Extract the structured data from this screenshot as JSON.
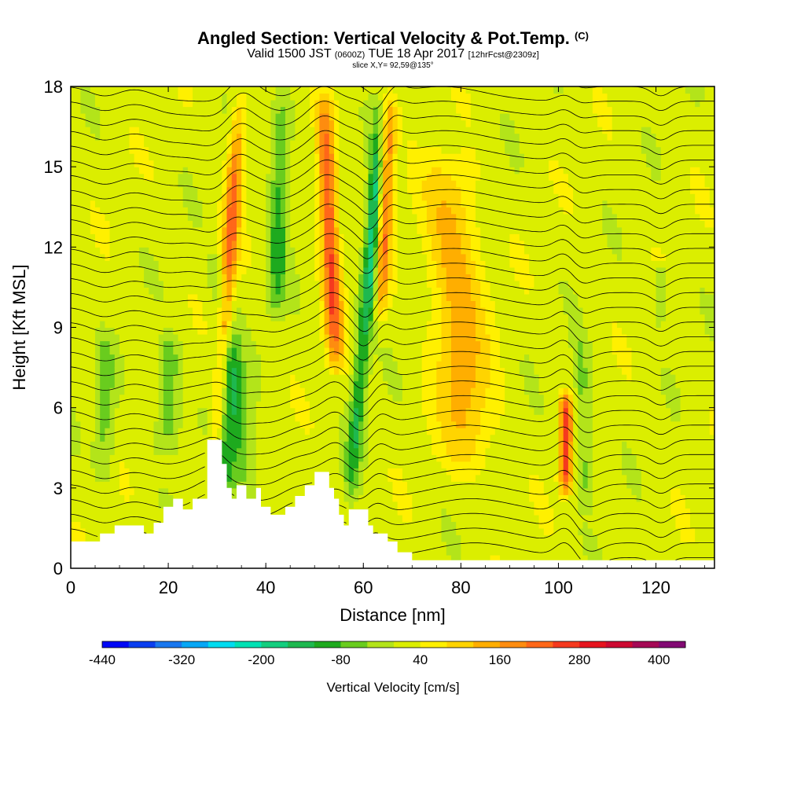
{
  "header": {
    "title": "Angled Section: Vertical Velocity & Pot.Temp.",
    "title_suffix": "(C)",
    "valid_a": "Valid 1500 JST",
    "valid_small1": "(0600Z)",
    "valid_b": "TUE 18 Apr 2017",
    "valid_small2": "[12hrFcst@2309z]",
    "slice": "slice X,Y= 92,59@135°"
  },
  "chart_data": {
    "type": "heatmap",
    "xlabel": "Distance [nm]",
    "ylabel": "Height [Kft MSL]",
    "xlim": [
      0,
      132
    ],
    "ylim": [
      0,
      18
    ],
    "x_ticks": [
      0,
      20,
      40,
      60,
      80,
      100,
      120
    ],
    "y_ticks": [
      0,
      3,
      6,
      9,
      12,
      15,
      18
    ],
    "colorbar": {
      "title": "Vertical Velocity [cm/s]",
      "labels": [
        "-440",
        "-320",
        "-200",
        "-80",
        "40",
        "160",
        "280",
        "400"
      ],
      "bins": [
        -440,
        -400,
        -360,
        -320,
        -280,
        -240,
        -200,
        -160,
        -120,
        -80,
        -40,
        0,
        40,
        80,
        120,
        160,
        200,
        240,
        280,
        320,
        360,
        400,
        440
      ],
      "colors": [
        "#0008f6",
        "#0a3ef0",
        "#1977ef",
        "#07a7f5",
        "#00dcf0",
        "#00e2b4",
        "#13ce7e",
        "#1eb84f",
        "#1eaa1e",
        "#69cc1e",
        "#b3e41a",
        "#dbee00",
        "#fff000",
        "#ffd400",
        "#ffae00",
        "#fe8c0f",
        "#ff6719",
        "#f5391e",
        "#e6141e",
        "#cd0a32",
        "#a50a55",
        "#820a73"
      ]
    },
    "terrain": [
      [
        0,
        1
      ],
      [
        6,
        1
      ],
      [
        6,
        1.3
      ],
      [
        9,
        1.3
      ],
      [
        9,
        1.6
      ],
      [
        15,
        1.6
      ],
      [
        15,
        1.3
      ],
      [
        17,
        1.3
      ],
      [
        17,
        1.7
      ],
      [
        19,
        1.7
      ],
      [
        19,
        2.3
      ],
      [
        21,
        2.3
      ],
      [
        21,
        2.6
      ],
      [
        23,
        2.6
      ],
      [
        23,
        2.2
      ],
      [
        25,
        2.2
      ],
      [
        25,
        2.6
      ],
      [
        28,
        2.6
      ],
      [
        28,
        4.8
      ],
      [
        31,
        4.8
      ],
      [
        31,
        3.9
      ],
      [
        32,
        3.9
      ],
      [
        32,
        3.0
      ],
      [
        33,
        3.0
      ],
      [
        33,
        2.6
      ],
      [
        34,
        2.6
      ],
      [
        34,
        3.1
      ],
      [
        36,
        3.1
      ],
      [
        36,
        2.6
      ],
      [
        38,
        2.6
      ],
      [
        38,
        3.0
      ],
      [
        39,
        3.0
      ],
      [
        39,
        2.3
      ],
      [
        41,
        2.3
      ],
      [
        41,
        2.0
      ],
      [
        44,
        2.0
      ],
      [
        44,
        2.3
      ],
      [
        46,
        2.3
      ],
      [
        46,
        2.7
      ],
      [
        48,
        2.7
      ],
      [
        48,
        3.1
      ],
      [
        50,
        3.1
      ],
      [
        50,
        3.6
      ],
      [
        53,
        3.6
      ],
      [
        53,
        3.0
      ],
      [
        54,
        3.0
      ],
      [
        54,
        2.6
      ],
      [
        55,
        2.6
      ],
      [
        55,
        2.0
      ],
      [
        56,
        2.0
      ],
      [
        56,
        1.6
      ],
      [
        57,
        1.6
      ],
      [
        57,
        2.2
      ],
      [
        61,
        2.2
      ],
      [
        61,
        1.6
      ],
      [
        62,
        1.6
      ],
      [
        62,
        1.3
      ],
      [
        65,
        1.3
      ],
      [
        65,
        1.0
      ],
      [
        67,
        1.0
      ],
      [
        67,
        0.6
      ],
      [
        70,
        0.6
      ],
      [
        70,
        0.3
      ],
      [
        132,
        0.3
      ]
    ],
    "velocity_features": [
      {
        "x": 29.5,
        "x_slope": 0.35,
        "y_range": [
          3,
          18
        ],
        "width": 1.6,
        "value": 200
      },
      {
        "x": 31.5,
        "x_slope": 0.0,
        "y_range": [
          2.5,
          9
        ],
        "width": 2.2,
        "value": -140
      },
      {
        "x": 37,
        "x_slope": -0.7,
        "y_range": [
          2,
          12
        ],
        "width": 2.5,
        "value": -100
      },
      {
        "x": 42,
        "x_slope": 0.15,
        "y_range": [
          9,
          18
        ],
        "width": 2.0,
        "value": -120
      },
      {
        "x": 54.5,
        "x_slope": -0.25,
        "y_range": [
          7,
          18
        ],
        "width": 1.8,
        "value": 230
      },
      {
        "x": 57,
        "x_slope": 0.45,
        "y_range": [
          2,
          16
        ],
        "width": 1.5,
        "value": -150
      },
      {
        "x": 63.5,
        "x_slope": 0.25,
        "y_range": [
          9,
          18
        ],
        "width": 1.4,
        "value": 170
      },
      {
        "x": 61.5,
        "x_slope": 0.15,
        "y_range": [
          9,
          18
        ],
        "width": 1.2,
        "value": -90
      },
      {
        "x": 82,
        "x_slope": -0.4,
        "y_range": [
          3,
          16
        ],
        "width": 5.5,
        "value": 120
      },
      {
        "x": 101.5,
        "x_slope": 0.0,
        "y_range": [
          2.5,
          6.8
        ],
        "width": 1.3,
        "value": 240
      },
      {
        "x": 106,
        "x_slope": -0.25,
        "y_range": [
          2,
          9
        ],
        "width": 1.6,
        "value": -80
      },
      {
        "x": 121,
        "x_slope": 0.0,
        "y_range": [
          9,
          11.5
        ],
        "width": 1.2,
        "value": -80
      },
      {
        "x": 20,
        "x_slope": 0.0,
        "y_range": [
          4,
          9
        ],
        "width": 2.5,
        "value": -90
      },
      {
        "x": 7,
        "x_slope": 0.0,
        "y_range": [
          3,
          9
        ],
        "width": 2.0,
        "value": -80
      }
    ]
  }
}
